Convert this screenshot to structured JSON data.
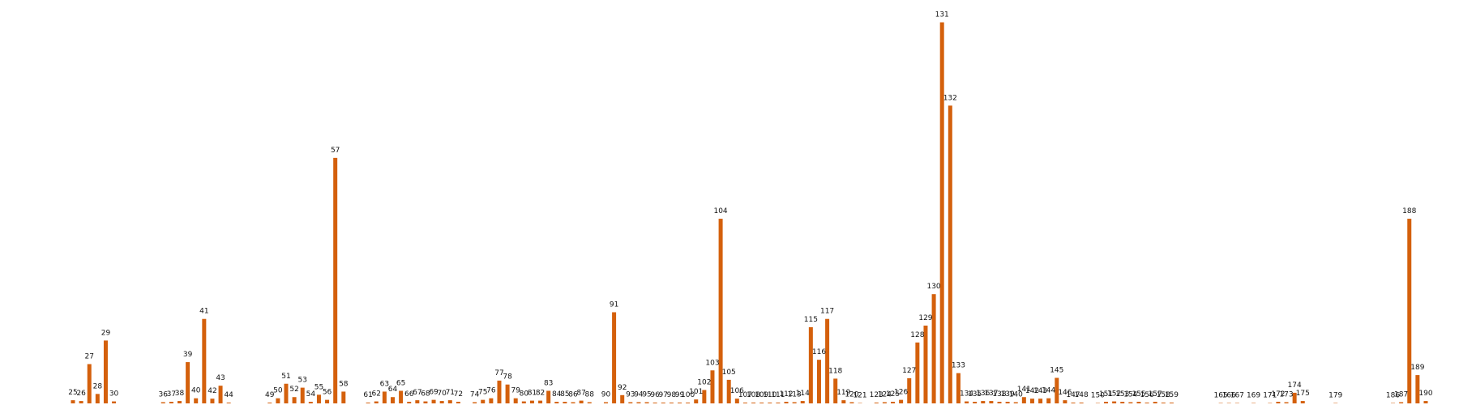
{
  "chart_data": {
    "type": "bar",
    "title": "",
    "xlabel": "",
    "ylabel": "",
    "grid": false,
    "legend": "none",
    "color": "#d4600c",
    "ylim": [
      0,
      100
    ],
    "categories": [
      "25",
      "26",
      "27",
      "28",
      "29",
      "30",
      "36",
      "37",
      "38",
      "39",
      "40",
      "41",
      "42",
      "43",
      "44",
      "49",
      "50",
      "51",
      "52",
      "53",
      "54",
      "55",
      "56",
      "57",
      "58",
      "61",
      "62",
      "63",
      "64",
      "65",
      "66",
      "67",
      "68",
      "69",
      "70",
      "71",
      "72",
      "74",
      "75",
      "76",
      "77",
      "78",
      "79",
      "80",
      "81",
      "82",
      "83",
      "84",
      "85",
      "86",
      "87",
      "88",
      "90",
      "91",
      "92",
      "93",
      "94",
      "95",
      "96",
      "97",
      "98",
      "99",
      "100",
      "101",
      "102",
      "103",
      "104",
      "105",
      "106",
      "107",
      "108",
      "109",
      "110",
      "111",
      "112",
      "113",
      "114",
      "115",
      "116",
      "117",
      "118",
      "119",
      "120",
      "121",
      "123",
      "124",
      "125",
      "126",
      "127",
      "128",
      "129",
      "130",
      "131",
      "132",
      "133",
      "134",
      "135",
      "136",
      "137",
      "138",
      "139",
      "140",
      "141",
      "142",
      "143",
      "144",
      "145",
      "146",
      "147",
      "148",
      "150",
      "151",
      "152",
      "153",
      "154",
      "155",
      "156",
      "157",
      "158",
      "159",
      "165",
      "166",
      "167",
      "169",
      "171",
      "172",
      "173",
      "174",
      "175",
      "179",
      "186",
      "187",
      "188",
      "189",
      "190"
    ],
    "values": [
      0.8,
      0.6,
      10.0,
      2.4,
      16.0,
      0.5,
      0.3,
      0.4,
      0.6,
      10.5,
      1.3,
      21.5,
      1.2,
      4.5,
      0.2,
      0.2,
      1.3,
      5.0,
      1.6,
      4.0,
      0.4,
      2.2,
      0.9,
      62.5,
      3.0,
      0.2,
      0.5,
      3.0,
      1.6,
      3.2,
      0.4,
      0.8,
      0.5,
      0.9,
      0.6,
      0.8,
      0.4,
      0.3,
      0.9,
      1.3,
      5.8,
      4.8,
      1.3,
      0.5,
      0.7,
      0.7,
      3.2,
      0.4,
      0.4,
      0.3,
      0.7,
      0.3,
      0.3,
      23.2,
      2.1,
      0.3,
      0.3,
      0.3,
      0.2,
      0.2,
      0.2,
      0.2,
      0.2,
      1.0,
      3.4,
      8.4,
      47.0,
      6.0,
      1.2,
      0.2,
      0.2,
      0.2,
      0.2,
      0.2,
      0.4,
      0.3,
      0.6,
      19.4,
      11.1,
      21.5,
      6.3,
      0.8,
      0.3,
      0.1,
      0.2,
      0.3,
      0.4,
      0.9,
      6.4,
      15.5,
      19.8,
      27.8,
      97.0,
      75.8,
      7.7,
      0.5,
      0.4,
      0.6,
      0.6,
      0.4,
      0.4,
      0.3,
      1.6,
      1.2,
      1.2,
      1.3,
      6.5,
      0.8,
      0.2,
      0.2,
      0.1,
      0.4,
      0.5,
      0.4,
      0.3,
      0.4,
      0.2,
      0.4,
      0.2,
      0.2,
      0.1,
      0.1,
      0.1,
      0.1,
      0.1,
      0.4,
      0.3,
      2.7,
      0.6,
      0.1,
      0.1,
      0.3,
      47.0,
      7.2,
      0.6
    ]
  }
}
